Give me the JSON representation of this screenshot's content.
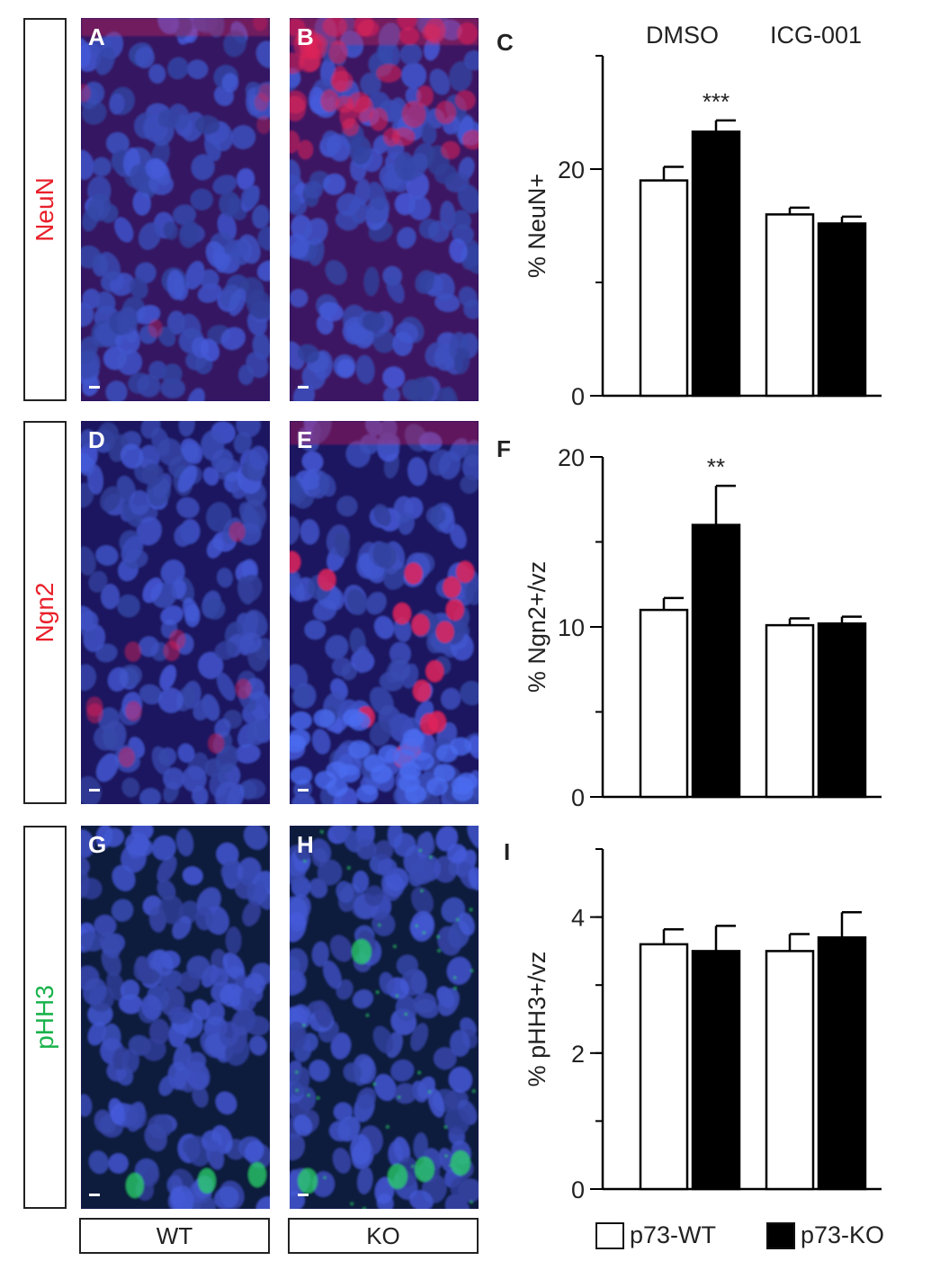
{
  "row_labels": [
    {
      "text": "NeuN",
      "color": "#e8202a"
    },
    {
      "text": "Ngn2",
      "color": "#e8202a"
    },
    {
      "text": "pHH3",
      "color": "#19b24b"
    }
  ],
  "panel_labels": [
    "A",
    "B",
    "D",
    "E",
    "G",
    "H"
  ],
  "genotypes": [
    "WT",
    "KO"
  ],
  "conditions": [
    "DMSO",
    "ICG-001"
  ],
  "legend": [
    {
      "label": "p73-WT",
      "fill": "#ffffff"
    },
    {
      "label": "p73-KO",
      "fill": "#000000"
    }
  ],
  "colors": {
    "nuclei": "#3a4fd0",
    "red_stain": "#e0245a",
    "green_stain": "#2bd46a"
  },
  "chart_data": [
    {
      "type": "bar",
      "label": "C",
      "ylabel": "% NeuN+",
      "ylim": [
        0,
        30
      ],
      "yticks": [
        0,
        20
      ],
      "groups": [
        "DMSO",
        "ICG-001"
      ],
      "series": [
        {
          "name": "p73-WT",
          "values": [
            19,
            16
          ],
          "errors": [
            1.2,
            0.6
          ]
        },
        {
          "name": "p73-KO",
          "values": [
            23.3,
            15.2
          ],
          "errors": [
            1.0,
            0.6
          ]
        }
      ],
      "annotations": [
        {
          "group": 0,
          "series": 1,
          "text": "***"
        }
      ]
    },
    {
      "type": "bar",
      "label": "F",
      "ylabel": "% Ngn2+/vz",
      "ylim": [
        0,
        20
      ],
      "yticks": [
        0,
        10,
        20
      ],
      "groups": [
        "DMSO",
        "ICG-001"
      ],
      "series": [
        {
          "name": "p73-WT",
          "values": [
            11,
            10.1
          ],
          "errors": [
            0.7,
            0.4
          ]
        },
        {
          "name": "p73-KO",
          "values": [
            16,
            10.2
          ],
          "errors": [
            2.3,
            0.4
          ]
        }
      ],
      "annotations": [
        {
          "group": 0,
          "series": 1,
          "text": "**"
        }
      ]
    },
    {
      "type": "bar",
      "label": "I",
      "ylabel": "% pHH3+/vz",
      "ylim": [
        0,
        5
      ],
      "yticks": [
        0,
        2,
        4
      ],
      "groups": [
        "DMSO",
        "ICG-001"
      ],
      "series": [
        {
          "name": "p73-WT",
          "values": [
            3.6,
            3.5
          ],
          "errors": [
            0.22,
            0.25
          ]
        },
        {
          "name": "p73-KO",
          "values": [
            3.5,
            3.7
          ],
          "errors": [
            0.37,
            0.37
          ]
        }
      ],
      "annotations": []
    }
  ]
}
